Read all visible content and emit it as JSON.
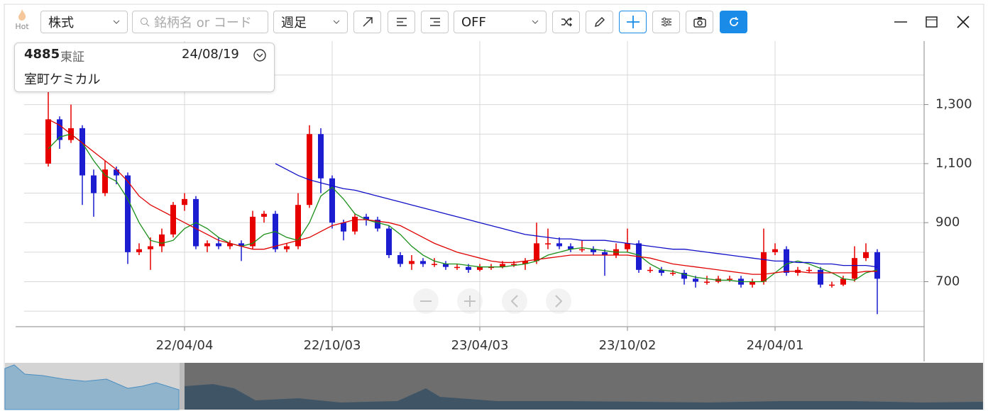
{
  "toolbar": {
    "hot": "Hot",
    "market": "株式",
    "search_placeholder": "銘柄名 or コード",
    "period": "週足",
    "indicator": "OFF"
  },
  "info": {
    "code": "4885",
    "exchange": "東証",
    "date": "24/08/19",
    "name": "室町ケミカル"
  },
  "chart_data": {
    "type": "candlestick",
    "categories": [
      null,
      null,
      null,
      null,
      null,
      null,
      null,
      null,
      null,
      null,
      null,
      null,
      "22/04/04",
      null,
      null,
      null,
      null,
      null,
      null,
      null,
      null,
      null,
      null,
      null,
      null,
      "22/10/03",
      null,
      null,
      null,
      null,
      null,
      null,
      null,
      null,
      null,
      null,
      null,
      null,
      "23/04/03",
      null,
      null,
      null,
      null,
      null,
      null,
      null,
      null,
      null,
      null,
      null,
      null,
      "23/10/02",
      null,
      null,
      null,
      null,
      null,
      null,
      null,
      null,
      null,
      null,
      null,
      null,
      "24/04/01",
      null,
      null,
      null,
      null,
      null,
      null,
      null,
      null,
      null
    ],
    "ohlc": [
      [
        1100,
        1420,
        1090,
        1250
      ],
      [
        1250,
        1260,
        1150,
        1180
      ],
      [
        1180,
        1300,
        1170,
        1220
      ],
      [
        1220,
        1230,
        960,
        1060
      ],
      [
        1060,
        1080,
        920,
        1000
      ],
      [
        1000,
        1110,
        990,
        1080
      ],
      [
        1080,
        1090,
        1030,
        1060
      ],
      [
        1060,
        1070,
        760,
        800
      ],
      [
        800,
        830,
        790,
        810
      ],
      [
        810,
        850,
        740,
        820
      ],
      [
        820,
        880,
        800,
        860
      ],
      [
        860,
        970,
        850,
        960
      ],
      [
        960,
        1000,
        940,
        980
      ],
      [
        980,
        990,
        810,
        820
      ],
      [
        820,
        840,
        800,
        830
      ],
      [
        830,
        850,
        810,
        820
      ],
      [
        820,
        840,
        810,
        830
      ],
      [
        830,
        840,
        770,
        820
      ],
      [
        820,
        940,
        810,
        920
      ],
      [
        920,
        940,
        900,
        930
      ],
      [
        930,
        940,
        800,
        810
      ],
      [
        810,
        830,
        800,
        820
      ],
      [
        820,
        1000,
        810,
        960
      ],
      [
        960,
        1230,
        950,
        1200
      ],
      [
        1200,
        1220,
        1000,
        1050
      ],
      [
        1050,
        1060,
        880,
        900
      ],
      [
        900,
        910,
        840,
        870
      ],
      [
        870,
        930,
        860,
        920
      ],
      [
        920,
        930,
        890,
        910
      ],
      [
        910,
        920,
        870,
        880
      ],
      [
        880,
        890,
        780,
        790
      ],
      [
        790,
        800,
        750,
        760
      ],
      [
        760,
        790,
        740,
        770
      ],
      [
        770,
        780,
        750,
        760
      ],
      [
        760,
        780,
        750,
        760
      ],
      [
        760,
        770,
        740,
        750
      ],
      [
        750,
        760,
        740,
        750
      ],
      [
        750,
        760,
        730,
        740
      ],
      [
        740,
        760,
        735,
        750
      ],
      [
        750,
        760,
        740,
        750
      ],
      [
        750,
        770,
        745,
        760
      ],
      [
        760,
        770,
        750,
        760
      ],
      [
        760,
        780,
        740,
        770
      ],
      [
        770,
        900,
        760,
        830
      ],
      [
        830,
        880,
        810,
        830
      ],
      [
        830,
        850,
        810,
        820
      ],
      [
        820,
        830,
        800,
        810
      ],
      [
        810,
        840,
        800,
        810
      ],
      [
        810,
        820,
        790,
        800
      ],
      [
        800,
        810,
        720,
        790
      ],
      [
        790,
        830,
        780,
        810
      ],
      [
        810,
        880,
        800,
        830
      ],
      [
        830,
        840,
        730,
        740
      ],
      [
        740,
        750,
        730,
        740
      ],
      [
        740,
        750,
        720,
        730
      ],
      [
        730,
        740,
        720,
        730
      ],
      [
        730,
        740,
        690,
        710
      ],
      [
        710,
        720,
        680,
        700
      ],
      [
        700,
        720,
        690,
        700
      ],
      [
        700,
        720,
        695,
        710
      ],
      [
        710,
        720,
        700,
        710
      ],
      [
        710,
        720,
        680,
        690
      ],
      [
        690,
        710,
        680,
        700
      ],
      [
        700,
        880,
        690,
        800
      ],
      [
        800,
        830,
        790,
        810
      ],
      [
        810,
        820,
        720,
        730
      ],
      [
        730,
        750,
        720,
        740
      ],
      [
        740,
        750,
        730,
        740
      ],
      [
        740,
        750,
        680,
        690
      ],
      [
        690,
        700,
        680,
        690
      ],
      [
        690,
        720,
        685,
        710
      ],
      [
        710,
        820,
        700,
        780
      ],
      [
        780,
        830,
        770,
        800
      ],
      [
        800,
        810,
        590,
        710
      ]
    ],
    "up_color": "#e60000",
    "down_color": "#1c1cd0",
    "lines": [
      {
        "color": "#1a8f1a",
        "values": [
          1150,
          1190,
          1200,
          1170,
          1110,
          1060,
          1040,
          980,
          900,
          840,
          830,
          840,
          880,
          900,
          880,
          850,
          830,
          820,
          830,
          860,
          870,
          850,
          840,
          900,
          990,
          1020,
          980,
          930,
          910,
          900,
          890,
          860,
          820,
          790,
          770,
          760,
          760,
          755,
          750,
          750,
          750,
          755,
          760,
          770,
          790,
          800,
          810,
          815,
          810,
          805,
          800,
          800,
          790,
          760,
          740,
          735,
          725,
          715,
          710,
          705,
          705,
          700,
          700,
          700,
          730,
          760,
          770,
          760,
          745,
          730,
          710,
          705,
          730,
          740
        ]
      },
      {
        "color": "#e00000",
        "values": [
          1250,
          1230,
          1200,
          1170,
          1140,
          1110,
          1080,
          1040,
          990,
          960,
          940,
          920,
          900,
          880,
          860,
          840,
          830,
          820,
          810,
          810,
          820,
          830,
          840,
          850,
          870,
          890,
          900,
          910,
          910,
          905,
          900,
          890,
          870,
          850,
          830,
          815,
          800,
          790,
          780,
          770,
          765,
          765,
          770,
          775,
          780,
          785,
          790,
          790,
          790,
          790,
          790,
          790,
          785,
          780,
          770,
          760,
          755,
          750,
          745,
          740,
          735,
          730,
          725,
          725,
          730,
          735,
          735,
          730,
          730,
          730,
          730,
          730,
          735,
          735
        ]
      },
      {
        "color": "#1010c8",
        "values": [
          null,
          null,
          null,
          null,
          null,
          null,
          null,
          null,
          null,
          null,
          null,
          null,
          null,
          null,
          null,
          null,
          null,
          null,
          null,
          null,
          1100,
          1080,
          1060,
          1045,
          1035,
          1025,
          1015,
          1010,
          1000,
          990,
          980,
          970,
          960,
          950,
          940,
          930,
          920,
          910,
          900,
          890,
          880,
          870,
          860,
          855,
          850,
          845,
          845,
          840,
          840,
          840,
          835,
          830,
          825,
          820,
          815,
          810,
          810,
          805,
          800,
          795,
          790,
          785,
          780,
          775,
          770,
          770,
          765,
          765,
          760,
          760,
          755,
          755,
          755,
          750
        ]
      }
    ],
    "ylim": [
      550,
      1515
    ],
    "yticks": [
      {
        "value": 700,
        "label": "700"
      },
      {
        "value": 900,
        "label": "900"
      },
      {
        "value": 1100,
        "label": "1,100"
      },
      {
        "value": 1300,
        "label": "1,300"
      }
    ],
    "ygrid": [
      600,
      800,
      1000,
      1200,
      1400
    ],
    "grid": true
  }
}
